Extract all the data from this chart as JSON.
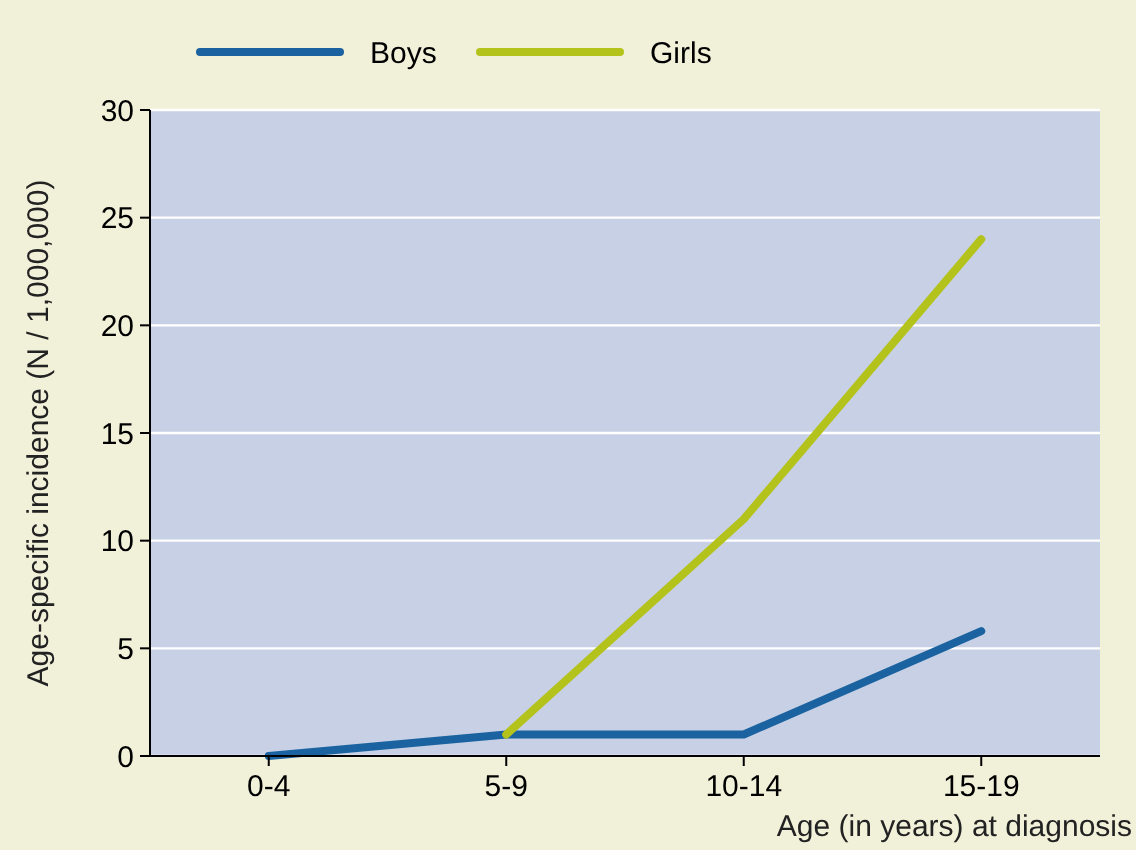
{
  "chart_data": {
    "type": "line",
    "xlabel": "Age (in years) at diagnosis",
    "ylabel": "Age-specific incidence  (N / 1,000,000)",
    "categories": [
      "0-4",
      "5-9",
      "10-14",
      "15-19"
    ],
    "series": [
      {
        "name": "Boys",
        "color": "#1a63a0",
        "values": [
          0,
          1,
          1,
          5.8
        ]
      },
      {
        "name": "Girls",
        "color": "#b4c21c",
        "values": [
          null,
          1,
          11,
          24
        ]
      }
    ],
    "ylim": [
      0,
      30
    ],
    "yticks": [
      0,
      5,
      10,
      15,
      20,
      25,
      30
    ],
    "grid": "y",
    "legend": "top",
    "marker": "none",
    "line_style": "solid"
  }
}
